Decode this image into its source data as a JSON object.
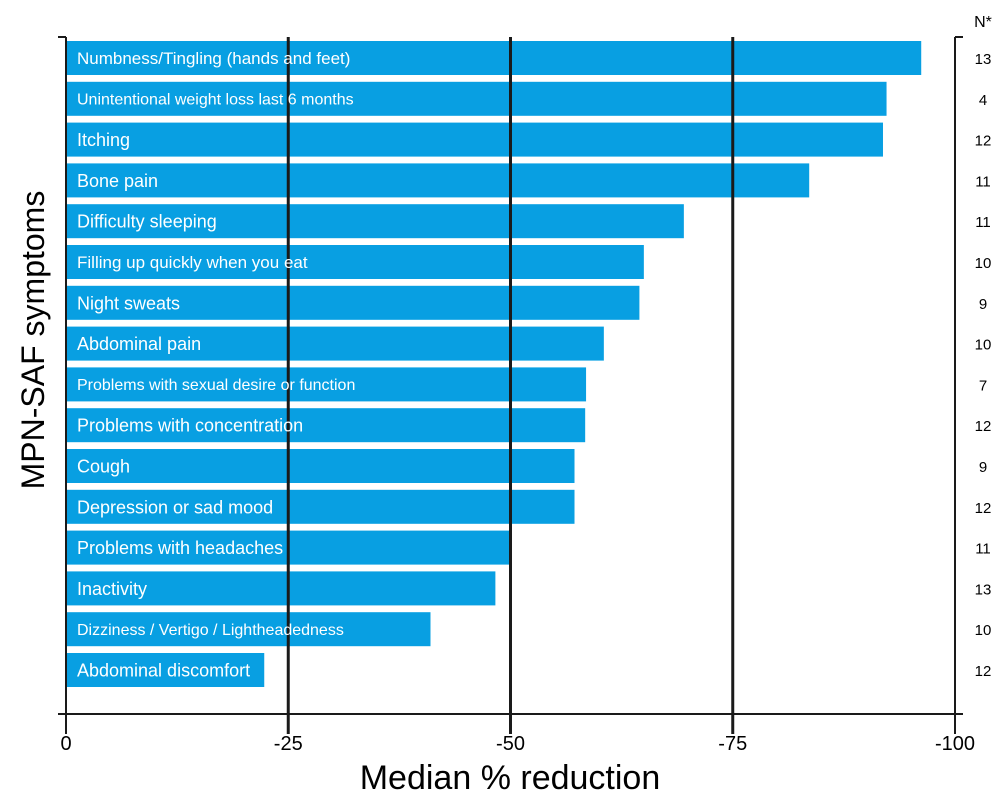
{
  "chart_data": {
    "type": "bar",
    "orientation": "horizontal",
    "title": "",
    "xlabel": "Median % reduction",
    "ylabel": "MPN-SAF symptoms",
    "xlim": [
      0,
      -100
    ],
    "x_ticks": [
      "0",
      "-25",
      "-50",
      "-75",
      "-100"
    ],
    "x_tick_values": [
      0,
      -25,
      -50,
      -75,
      -100
    ],
    "grid": true,
    "n_header": "N*",
    "categories": [
      "Numbness/Tingling (hands and feet)",
      "Unintentional weight loss last 6 months",
      "Itching",
      "Bone pain",
      "Difficulty sleeping",
      "Filling up quickly when you eat",
      "Night sweats",
      "Abdominal pain",
      "Problems with sexual desire or function",
      "Problems with concentration",
      "Cough",
      "Depression or sad mood",
      "Problems with headaches",
      "Inactivity",
      "Dizziness / Vertigo / Lightheadedness",
      "Abdominal discomfort"
    ],
    "values": [
      -96.2,
      -92.3,
      -91.9,
      -83.6,
      -69.5,
      -65.0,
      -64.5,
      -60.5,
      -58.5,
      -58.4,
      -57.2,
      -57.2,
      -50.0,
      -48.3,
      -41.0,
      -22.3
    ],
    "n_values": [
      "13",
      "4",
      "12",
      "11",
      "11",
      "10",
      "9",
      "10",
      "7",
      "12",
      "9",
      "12",
      "11",
      "13",
      "10",
      "12"
    ],
    "bar_color": "#089fe2"
  }
}
